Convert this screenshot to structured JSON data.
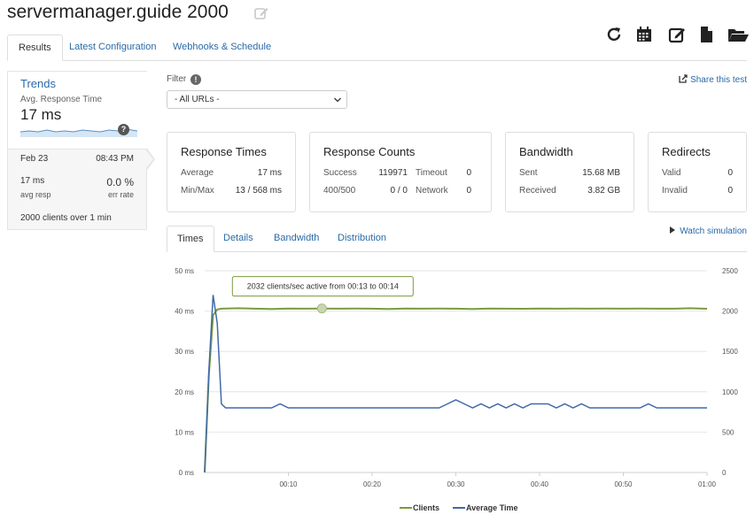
{
  "header": {
    "title": "servermanager.guide 2000"
  },
  "tabs": [
    {
      "label": "Results"
    },
    {
      "label": "Latest Configuration"
    },
    {
      "label": "Webhooks & Schedule"
    }
  ],
  "toolbar": {
    "icons": [
      "refresh-icon",
      "calendar-icon",
      "edit-icon",
      "document-icon",
      "folder-open-icon"
    ]
  },
  "sidebar": {
    "trends_title": "Trends",
    "avg_label": "Avg. Response Time",
    "avg_value": "17 ms",
    "help": "?",
    "date": "Feb 23",
    "time": "08:43 PM",
    "resp_value": "17 ms",
    "resp_label": "avg resp",
    "err_value": "0.0 %",
    "err_label": "err rate",
    "clients": "2000 clients over 1 min"
  },
  "filter": {
    "label": "Filter",
    "info": "!",
    "selected": "- All URLs -"
  },
  "share": {
    "label": "Share this test"
  },
  "cards": {
    "response_times": {
      "title": "Response Times",
      "average_label": "Average",
      "average_value": "17 ms",
      "minmax_label": "Min/Max",
      "minmax_value": "13 / 568 ms"
    },
    "response_counts": {
      "title": "Response Counts",
      "success_label": "Success",
      "success_value": "119971",
      "timeout_label": "Timeout",
      "timeout_value": "0",
      "err_label": "400/500",
      "err_value": "0 / 0",
      "network_label": "Network",
      "network_value": "0"
    },
    "bandwidth": {
      "title": "Bandwidth",
      "sent_label": "Sent",
      "sent_value": "15.68 MB",
      "received_label": "Received",
      "received_value": "3.82 GB"
    },
    "redirects": {
      "title": "Redirects",
      "valid_label": "Valid",
      "valid_value": "0",
      "invalid_label": "Invalid",
      "invalid_value": "0"
    }
  },
  "chart_tabs": [
    {
      "label": "Times"
    },
    {
      "label": "Details"
    },
    {
      "label": "Bandwidth"
    },
    {
      "label": "Distribution"
    }
  ],
  "watch": {
    "label": "Watch simulation"
  },
  "colors": {
    "clients": "#7a9c3c",
    "average_time": "#3f6aa8",
    "link": "#2a6aa8"
  },
  "chart_data": {
    "type": "line",
    "x_ticks": [
      "00:10",
      "00:20",
      "00:30",
      "00:40",
      "00:50",
      "01:00"
    ],
    "xlim": [
      0,
      60
    ],
    "left_ticks": [
      "0 ms",
      "10 ms",
      "20 ms",
      "30 ms",
      "40 ms",
      "50 ms"
    ],
    "left_ylim": [
      0,
      50
    ],
    "right_ticks": [
      "0",
      "500",
      "1000",
      "1500",
      "2000",
      "2500"
    ],
    "right_ylim": [
      0,
      2500
    ],
    "tooltip": "2032 clients/sec active from 00:13 to 00:14",
    "tooltip_point": {
      "x": 14,
      "y": 2032
    },
    "legend": "bottom",
    "series": [
      {
        "name": "Clients",
        "axis": "right",
        "points": [
          [
            0,
            0
          ],
          [
            0.5,
            1200
          ],
          [
            1,
            1950
          ],
          [
            1.5,
            2020
          ],
          [
            2,
            2030
          ],
          [
            4,
            2035
          ],
          [
            6,
            2030
          ],
          [
            8,
            2025
          ],
          [
            10,
            2032
          ],
          [
            12,
            2030
          ],
          [
            14,
            2032
          ],
          [
            16,
            2030
          ],
          [
            18,
            2032
          ],
          [
            20,
            2030
          ],
          [
            22,
            2025
          ],
          [
            24,
            2032
          ],
          [
            26,
            2030
          ],
          [
            28,
            2032
          ],
          [
            30,
            2030
          ],
          [
            32,
            2025
          ],
          [
            34,
            2032
          ],
          [
            36,
            2030
          ],
          [
            38,
            2028
          ],
          [
            40,
            2032
          ],
          [
            42,
            2030
          ],
          [
            44,
            2032
          ],
          [
            46,
            2030
          ],
          [
            48,
            2032
          ],
          [
            50,
            2030
          ],
          [
            52,
            2032
          ],
          [
            54,
            2030
          ],
          [
            56,
            2030
          ],
          [
            58,
            2035
          ],
          [
            60,
            2028
          ]
        ]
      },
      {
        "name": "Average Time",
        "axis": "left",
        "points": [
          [
            0,
            0
          ],
          [
            0.5,
            25
          ],
          [
            1,
            44
          ],
          [
            1.5,
            37
          ],
          [
            2,
            17
          ],
          [
            2.5,
            16
          ],
          [
            5,
            16
          ],
          [
            8,
            16
          ],
          [
            9,
            17
          ],
          [
            10,
            16
          ],
          [
            12,
            16
          ],
          [
            15,
            16
          ],
          [
            20,
            16
          ],
          [
            25,
            16
          ],
          [
            28,
            16
          ],
          [
            29,
            17
          ],
          [
            30,
            18
          ],
          [
            31,
            17
          ],
          [
            32,
            16
          ],
          [
            33,
            17
          ],
          [
            34,
            16
          ],
          [
            35,
            17
          ],
          [
            36,
            16
          ],
          [
            37,
            17
          ],
          [
            38,
            16
          ],
          [
            39,
            17
          ],
          [
            40,
            17
          ],
          [
            41,
            17
          ],
          [
            42,
            16
          ],
          [
            43,
            17
          ],
          [
            44,
            16
          ],
          [
            45,
            17
          ],
          [
            46,
            16
          ],
          [
            48,
            16
          ],
          [
            50,
            16
          ],
          [
            52,
            16
          ],
          [
            53,
            17
          ],
          [
            54,
            16
          ],
          [
            56,
            16
          ],
          [
            58,
            16
          ],
          [
            60,
            16
          ]
        ]
      }
    ]
  }
}
